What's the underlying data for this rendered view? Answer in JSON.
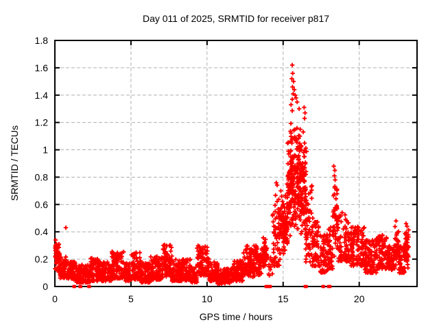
{
  "chart_data": {
    "type": "scatter",
    "title": "Day 011 of 2025, SRMTID for receiver p817",
    "xlabel": "GPS time / hours",
    "ylabel": "SRMTID / TECUs",
    "xlim": [
      0,
      23.8
    ],
    "ylim": [
      0,
      1.8
    ],
    "grid": true,
    "legend": "none",
    "marker": "plus",
    "marker_color": "#ff0000",
    "grid_color": "#b0b0b0",
    "axis_color": "#000000",
    "background_color": "#ffffff",
    "xticks": [
      0,
      5,
      10,
      15,
      20
    ],
    "xtick_labels": [
      "0",
      "5",
      "10",
      "15",
      "20"
    ],
    "yticks": [
      0,
      0.2,
      0.4,
      0.6,
      0.8,
      1.0,
      1.2,
      1.4,
      1.6,
      1.8
    ],
    "ytick_labels": [
      "0",
      "0.2",
      "0.4",
      "0.6",
      "0.8",
      "1",
      "1.2",
      "1.4",
      "1.6",
      "1.8"
    ],
    "series": [
      {
        "name": "SRMTID",
        "color": "#ff0000"
      }
    ],
    "envelope_segments": [
      [
        0.02,
        0.32,
        0.08,
        0.33,
        70,
        1
      ],
      [
        0.32,
        0.8,
        0.06,
        0.22,
        55,
        0
      ],
      [
        0.8,
        1.4,
        0.05,
        0.18,
        70,
        0
      ],
      [
        1.4,
        2.35,
        0.03,
        0.16,
        110,
        0
      ],
      [
        2.35,
        3.1,
        0.04,
        0.21,
        90,
        0
      ],
      [
        3.1,
        3.7,
        0.04,
        0.18,
        70,
        0
      ],
      [
        3.7,
        4.55,
        0.06,
        0.26,
        100,
        0
      ],
      [
        4.55,
        5.0,
        0.04,
        0.18,
        55,
        0
      ],
      [
        5.0,
        5.65,
        0.05,
        0.25,
        80,
        0
      ],
      [
        5.65,
        6.3,
        0.03,
        0.17,
        80,
        0
      ],
      [
        6.3,
        7.1,
        0.05,
        0.22,
        95,
        0
      ],
      [
        7.1,
        7.7,
        0.07,
        0.31,
        75,
        0
      ],
      [
        7.7,
        8.9,
        0.04,
        0.2,
        140,
        0
      ],
      [
        8.9,
        9.35,
        0.03,
        0.15,
        55,
        0
      ],
      [
        9.35,
        10.15,
        0.08,
        0.3,
        95,
        0
      ],
      [
        10.15,
        10.7,
        0.04,
        0.18,
        65,
        0
      ],
      [
        10.7,
        11.6,
        0.02,
        0.13,
        110,
        0
      ],
      [
        11.6,
        12.4,
        0.04,
        0.19,
        95,
        0
      ],
      [
        12.4,
        13.3,
        0.07,
        0.3,
        110,
        0
      ],
      [
        13.3,
        13.6,
        0.08,
        0.24,
        40,
        0
      ],
      [
        13.6,
        13.95,
        0.1,
        0.37,
        45,
        1
      ],
      [
        14.0,
        14.35,
        0.08,
        0.22,
        12,
        0
      ],
      [
        14.3,
        14.8,
        0.15,
        0.55,
        55,
        0
      ],
      [
        14.45,
        14.78,
        0.5,
        0.78,
        8,
        1
      ],
      [
        14.8,
        15.25,
        0.2,
        0.68,
        60,
        1
      ],
      [
        15.0,
        15.3,
        0.28,
        0.52,
        40,
        1
      ],
      [
        15.25,
        15.65,
        0.3,
        1.1,
        70,
        1
      ],
      [
        15.45,
        16.2,
        0.55,
        1.35,
        90,
        1
      ],
      [
        15.55,
        16.45,
        0.35,
        0.95,
        110,
        1
      ],
      [
        16.2,
        16.55,
        0.3,
        1.28,
        45,
        1
      ],
      [
        16.45,
        16.9,
        0.18,
        0.75,
        55,
        0
      ],
      [
        16.9,
        17.4,
        0.15,
        0.5,
        60,
        0
      ],
      [
        17.4,
        17.95,
        0.1,
        0.38,
        60,
        0
      ],
      [
        17.95,
        18.25,
        0.12,
        0.45,
        35,
        0
      ],
      [
        18.25,
        18.55,
        0.2,
        0.8,
        40,
        1
      ],
      [
        18.55,
        19.3,
        0.18,
        0.55,
        85,
        0
      ],
      [
        19.3,
        20.35,
        0.15,
        0.44,
        120,
        0
      ],
      [
        20.35,
        21.2,
        0.1,
        0.35,
        100,
        0
      ],
      [
        21.2,
        21.85,
        0.13,
        0.38,
        80,
        0
      ],
      [
        21.85,
        22.35,
        0.12,
        0.3,
        60,
        0
      ],
      [
        22.35,
        22.6,
        0.15,
        0.46,
        35,
        1
      ],
      [
        22.6,
        23.0,
        0.1,
        0.3,
        50,
        0
      ],
      [
        23.0,
        23.25,
        0.12,
        0.45,
        45,
        1
      ]
    ],
    "outlier_points": [
      [
        0.72,
        0.43
      ],
      [
        0.05,
        0.34
      ],
      [
        0.1,
        0.31
      ],
      [
        15.6,
        1.62
      ],
      [
        15.63,
        1.56
      ],
      [
        15.57,
        1.52
      ],
      [
        15.68,
        1.5
      ],
      [
        15.62,
        1.46
      ],
      [
        15.73,
        1.44
      ],
      [
        15.66,
        1.41
      ],
      [
        15.79,
        1.4
      ],
      [
        15.6,
        1.37
      ],
      [
        15.85,
        1.38
      ],
      [
        15.92,
        1.35
      ],
      [
        15.52,
        1.33
      ],
      [
        16.05,
        1.3
      ],
      [
        16.38,
        1.31
      ],
      [
        16.44,
        1.27
      ],
      [
        16.41,
        1.23
      ],
      [
        18.33,
        0.88
      ],
      [
        18.4,
        0.85
      ],
      [
        18.37,
        0.81
      ],
      [
        18.42,
        0.78
      ],
      [
        14.85,
        0.7
      ],
      [
        14.9,
        0.66
      ],
      [
        22.42,
        0.48
      ],
      [
        23.08,
        0.46
      ],
      [
        23.14,
        0.44
      ]
    ],
    "zero_points": [
      1.25,
      1.29,
      1.65,
      1.7,
      2.22,
      2.27,
      13.88,
      13.93,
      14.02,
      14.08,
      14.16,
      16.45,
      16.52,
      17.62,
      17.66,
      17.98,
      18.08
    ]
  }
}
